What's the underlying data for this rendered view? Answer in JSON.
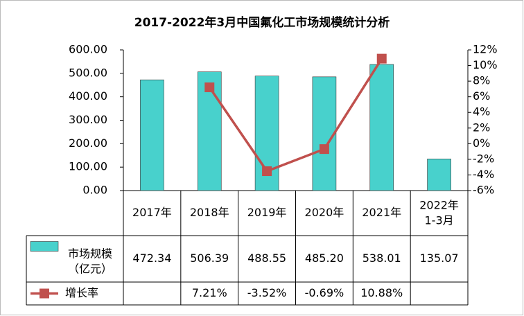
{
  "chart_data": {
    "type": "bar-line",
    "title": "2017-2022年3月中国氟化工市场规模统计分析",
    "categories": [
      "2017年",
      "2018年",
      "2019年",
      "2020年",
      "2021年",
      "2022年\n1-3月"
    ],
    "series": [
      {
        "name": "市场规模\n（亿元）",
        "type": "bar",
        "color": "#48D1CC",
        "values": [
          472.34,
          506.39,
          488.55,
          485.2,
          538.01,
          135.07
        ],
        "value_labels": [
          "472.34",
          "506.39",
          "488.55",
          "485.20",
          "538.01",
          "135.07"
        ]
      },
      {
        "name": "增长率",
        "type": "line",
        "axis": "y2",
        "color": "#C0504D",
        "values": [
          null,
          7.21,
          -3.52,
          -0.69,
          10.88,
          null
        ],
        "value_labels": [
          null,
          "7.21%",
          "-3.52%",
          "-0.69%",
          "10.88%",
          null
        ]
      }
    ],
    "ylim": [
      0,
      600
    ],
    "yticks": [
      {
        "value": 0,
        "label": "0.00"
      },
      {
        "value": 100,
        "label": "100.00"
      },
      {
        "value": 200,
        "label": "200.00"
      },
      {
        "value": 300,
        "label": "300.00"
      },
      {
        "value": 400,
        "label": "400.00"
      },
      {
        "value": 500,
        "label": "500.00"
      },
      {
        "value": 600,
        "label": "600.00"
      }
    ],
    "y2lim": [
      -6,
      12
    ],
    "y2ticks": [
      {
        "value": -6,
        "label": "-6%"
      },
      {
        "value": -4,
        "label": "-4%"
      },
      {
        "value": -2,
        "label": "-2%"
      },
      {
        "value": 0,
        "label": "0%"
      },
      {
        "value": 2,
        "label": "2%"
      },
      {
        "value": 4,
        "label": "4%"
      },
      {
        "value": 6,
        "label": "6%"
      },
      {
        "value": 8,
        "label": "8%"
      },
      {
        "value": 10,
        "label": "10%"
      },
      {
        "value": 12,
        "label": "12%"
      }
    ]
  }
}
